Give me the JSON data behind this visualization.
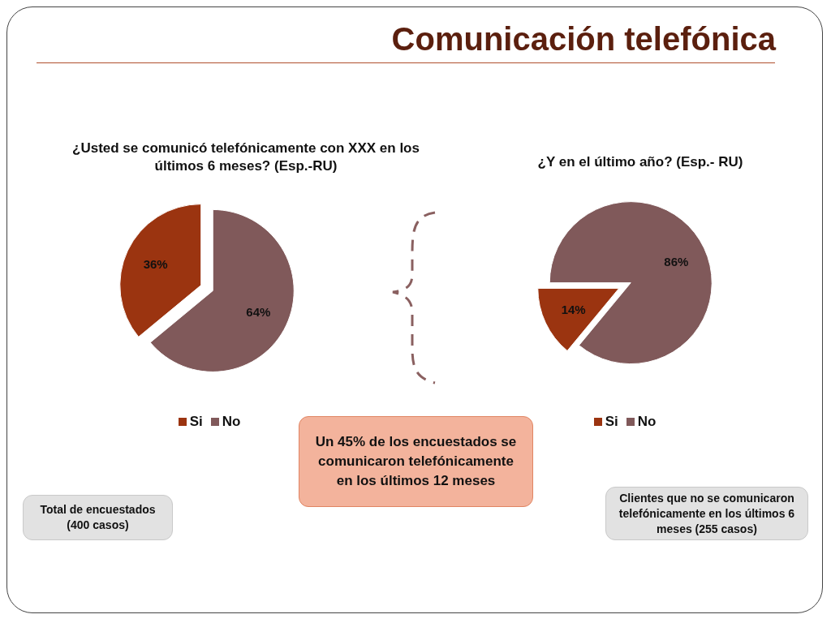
{
  "chart_data": [
    {
      "type": "other",
      "title": "Comunicación telefónica",
      "annotations": [
        "Un 45% de los encuestados se comunicaron telefónicamente en los últimos 12 meses"
      ]
    },
    {
      "type": "pie",
      "title": "¿Usted se comunicó telefónicamente con XXX en los últimos 6 meses? (Esp.-RU)",
      "categories": [
        "Si",
        "No"
      ],
      "values": [
        36,
        64
      ],
      "colors": [
        "#9b3410",
        "#80595a"
      ],
      "value_labels": [
        "36%",
        "64%"
      ],
      "legend": "bottom",
      "annotations": [
        "Total de encuestados (400 casos)"
      ]
    },
    {
      "type": "pie",
      "title": "¿Y en el último año? (Esp.- RU)",
      "categories": [
        "Si",
        "No"
      ],
      "values": [
        14,
        86
      ],
      "colors": [
        "#9b3410",
        "#80595a"
      ],
      "value_labels": [
        "14%",
        "86%"
      ],
      "legend": "bottom",
      "annotations": [
        "Clientes que no se comunicaron telefónicamente en los últimos 6 meses (255 casos)"
      ]
    }
  ]
}
